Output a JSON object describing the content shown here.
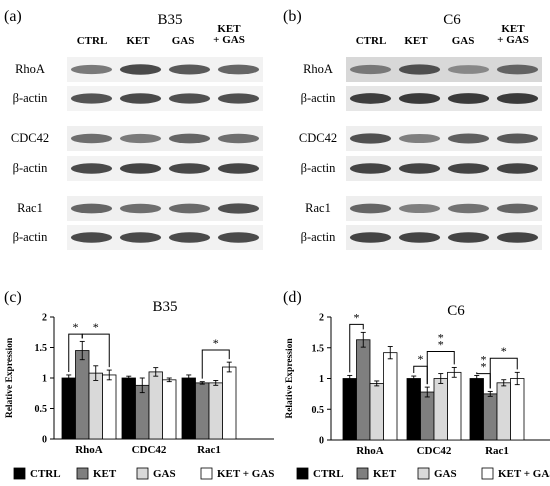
{
  "blots": [
    {
      "panel_label": "(a)",
      "title": "B35",
      "columns": [
        "CTRL",
        "KET",
        "GAS",
        "KET\n+ GAS"
      ],
      "rows": [
        {
          "label": "RhoA",
          "bg": "#f2f2f2",
          "intensity": [
            0.62,
            0.85,
            0.78,
            0.72
          ]
        },
        {
          "label": "β-actin",
          "bg": "#f3f3f3",
          "intensity": [
            0.8,
            0.85,
            0.82,
            0.82
          ]
        },
        {
          "label": "CDC42",
          "bg": "#efefef",
          "intensity": [
            0.68,
            0.62,
            0.72,
            0.68
          ]
        },
        {
          "label": "β-actin",
          "bg": "#f2f2f2",
          "intensity": [
            0.85,
            0.88,
            0.86,
            0.87
          ]
        },
        {
          "label": "Rac1",
          "bg": "#f0f0f0",
          "intensity": [
            0.72,
            0.68,
            0.7,
            0.82
          ]
        },
        {
          "label": "β-actin",
          "bg": "#f2f2f2",
          "intensity": [
            0.85,
            0.85,
            0.85,
            0.85
          ]
        }
      ]
    },
    {
      "panel_label": "(b)",
      "title": "C6",
      "columns": [
        "CTRL",
        "KET",
        "GAS",
        "KET\n+ GAS"
      ],
      "rows": [
        {
          "label": "RhoA",
          "bg": "#d8d8d8",
          "intensity": [
            0.62,
            0.82,
            0.55,
            0.72
          ]
        },
        {
          "label": "β-actin",
          "bg": "#e6e6e6",
          "intensity": [
            0.9,
            0.92,
            0.92,
            0.92
          ]
        },
        {
          "label": "CDC42",
          "bg": "#eeeeee",
          "intensity": [
            0.82,
            0.6,
            0.75,
            0.78
          ]
        },
        {
          "label": "β-actin",
          "bg": "#ececec",
          "intensity": [
            0.88,
            0.88,
            0.88,
            0.88
          ]
        },
        {
          "label": "Rac1",
          "bg": "#eeeeee",
          "intensity": [
            0.72,
            0.6,
            0.66,
            0.72
          ]
        },
        {
          "label": "β-actin",
          "bg": "#eeeeee",
          "intensity": [
            0.88,
            0.88,
            0.88,
            0.88
          ]
        }
      ]
    }
  ],
  "chart_data": [
    {
      "type": "bar",
      "panel_label": "(c)",
      "title": "B35",
      "ylabel": "Relative Expression",
      "ylim": [
        0,
        2
      ],
      "yticks": [
        0,
        0.5,
        1,
        1.5,
        2
      ],
      "categories": [
        "RhoA",
        "CDC42",
        "Rac1"
      ],
      "series": [
        {
          "name": "CTRL",
          "color": "#000000",
          "values": [
            1.0,
            1.0,
            1.0
          ],
          "errors": [
            0.05,
            0.03,
            0.05
          ]
        },
        {
          "name": "KET",
          "color": "#7f7f7f",
          "values": [
            1.45,
            0.88,
            0.92
          ],
          "errors": [
            0.15,
            0.12,
            0.02
          ]
        },
        {
          "name": "GAS",
          "color": "#d9d9d9",
          "values": [
            1.08,
            1.1,
            0.92
          ],
          "errors": [
            0.12,
            0.07,
            0.04
          ]
        },
        {
          "name": "KET + GAS",
          "color": "#ffffff",
          "values": [
            1.05,
            0.97,
            1.18
          ],
          "errors": [
            0.08,
            0.03,
            0.08
          ]
        }
      ],
      "significance": [
        {
          "category": 0,
          "from": 0,
          "to": 1,
          "label": "*",
          "at": 1.72
        },
        {
          "category": 0,
          "from": 1,
          "to": 3,
          "label": "*",
          "at": 1.72
        },
        {
          "category": 2,
          "from": 1,
          "to": 3,
          "label": "*",
          "at": 1.46
        }
      ]
    },
    {
      "type": "bar",
      "panel_label": "(d)",
      "title": "C6",
      "ylabel": "Relative Expression",
      "ylim": [
        0,
        2
      ],
      "yticks": [
        0,
        0.5,
        1,
        1.5,
        2
      ],
      "categories": [
        "RhoA",
        "CDC42",
        "Rac1"
      ],
      "series": [
        {
          "name": "CTRL",
          "color": "#000000",
          "values": [
            1.0,
            1.0,
            1.0
          ],
          "errors": [
            0.05,
            0.04,
            0.05
          ]
        },
        {
          "name": "KET",
          "color": "#7f7f7f",
          "values": [
            1.63,
            0.78,
            0.75
          ],
          "errors": [
            0.12,
            0.08,
            0.04
          ]
        },
        {
          "name": "GAS",
          "color": "#d9d9d9",
          "values": [
            0.92,
            1.0,
            0.93
          ],
          "errors": [
            0.04,
            0.08,
            0.05
          ]
        },
        {
          "name": "KET + GAS",
          "color": "#ffffff",
          "values": [
            1.42,
            1.1,
            1.0
          ],
          "errors": [
            0.1,
            0.08,
            0.1
          ]
        }
      ],
      "significance": [
        {
          "category": 0,
          "from": 0,
          "to": 1,
          "label": "*",
          "at": 1.88
        },
        {
          "category": 1,
          "from": 0,
          "to": 1,
          "label": "*",
          "at": 1.2
        },
        {
          "category": 1,
          "from": 1,
          "to": 3,
          "label": "*\n*",
          "at": 1.44
        },
        {
          "category": 2,
          "from": 0,
          "to": 1,
          "label": "*\n*",
          "at": 1.08
        },
        {
          "category": 2,
          "from": 1,
          "to": 3,
          "label": "*",
          "at": 1.33
        }
      ]
    }
  ]
}
